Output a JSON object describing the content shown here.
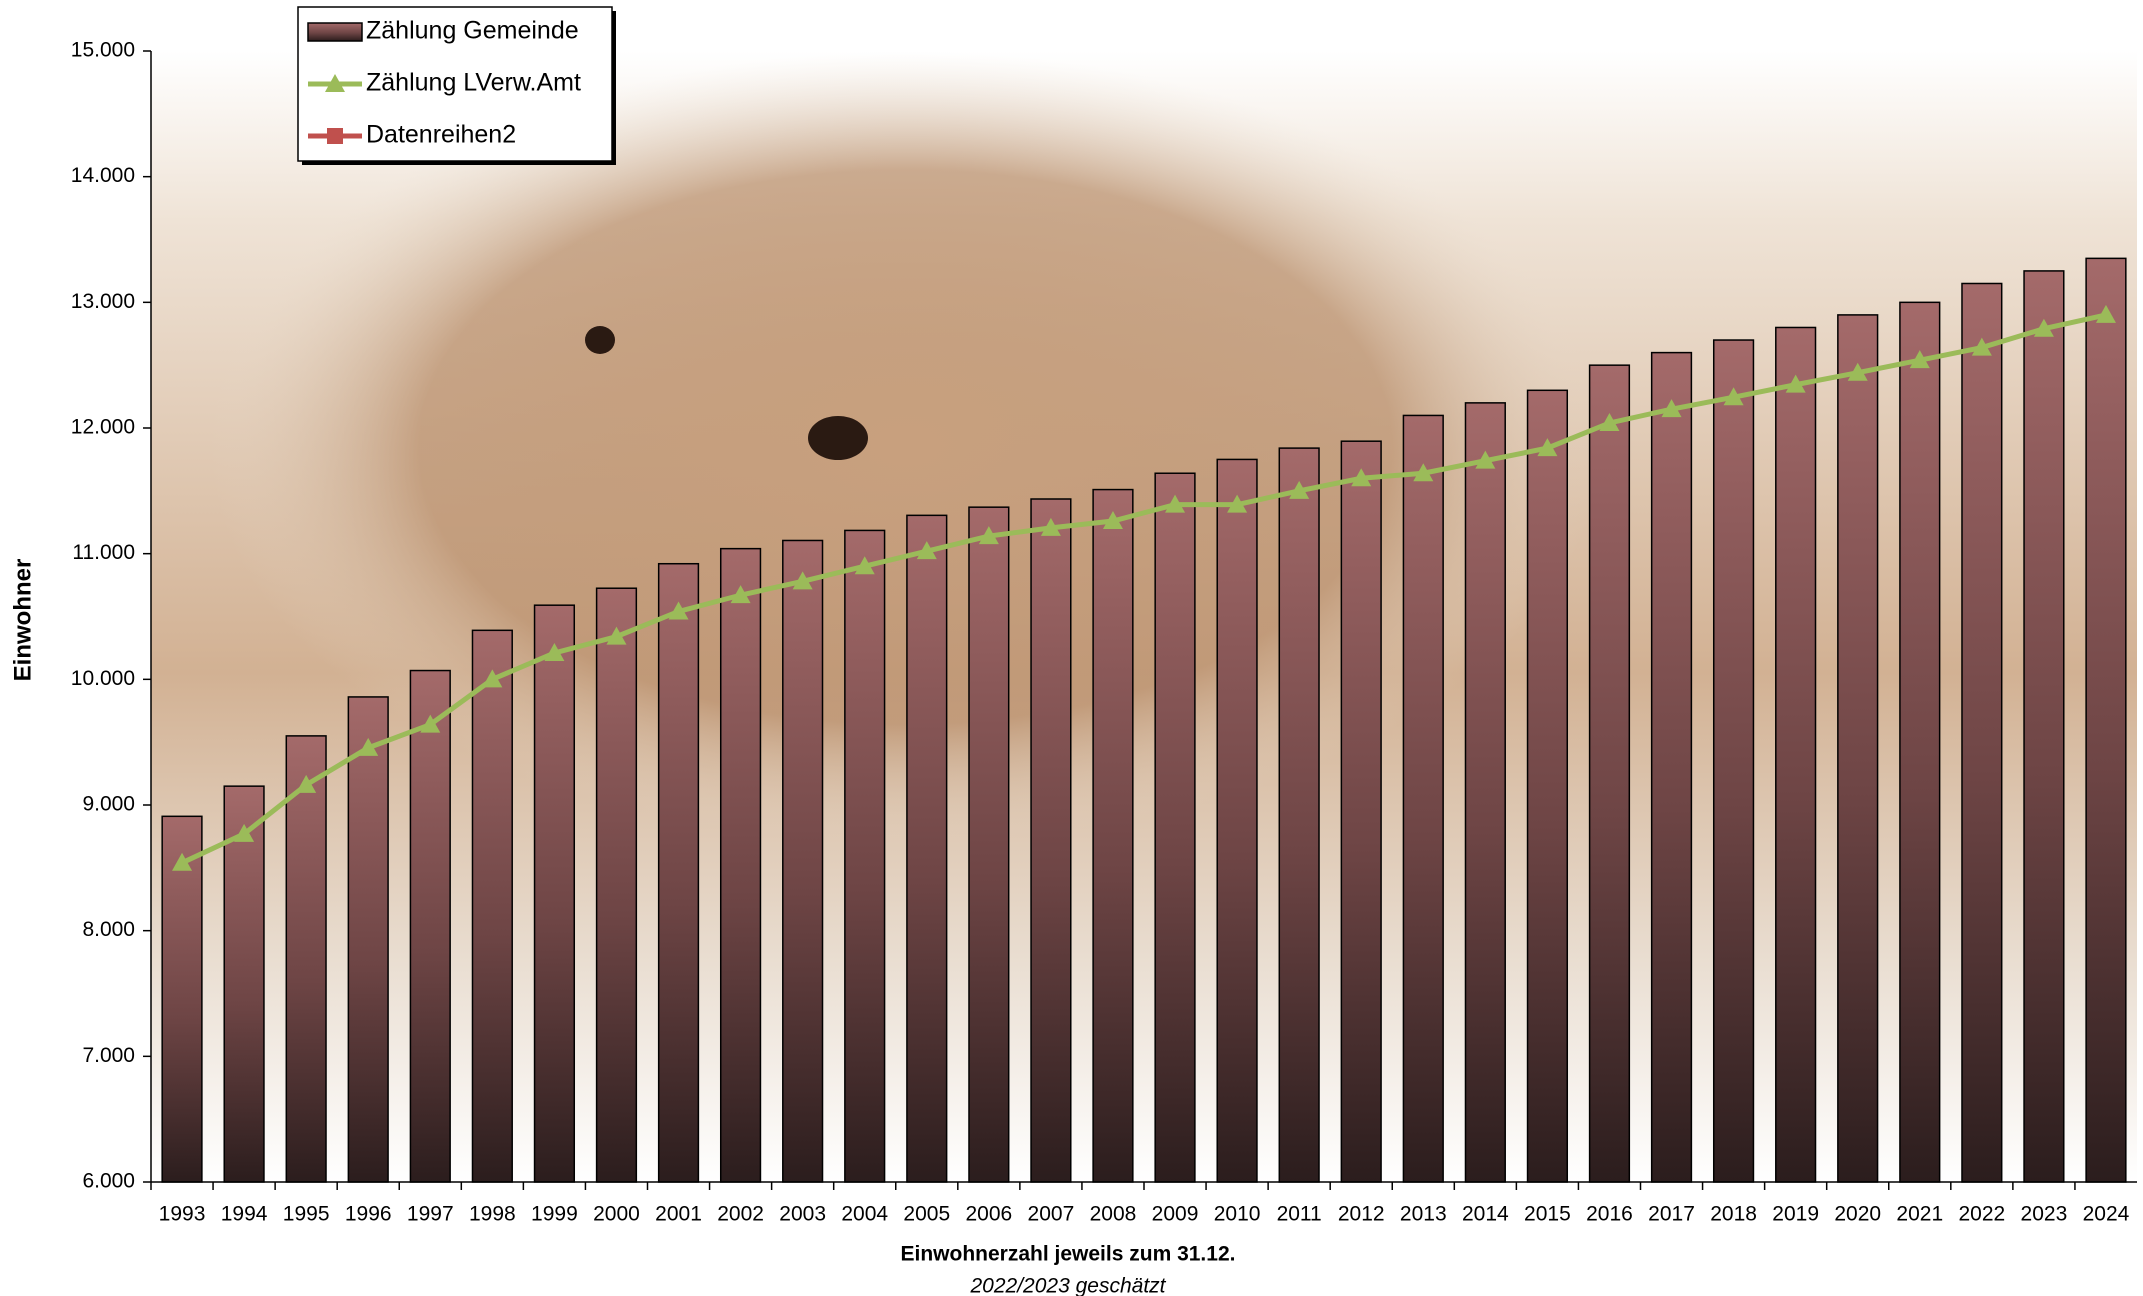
{
  "chart_data": {
    "type": "bar-line",
    "x_label": "Einwohnerzahl jeweils zum 31.12.",
    "subtitle": "2022/2023 geschätzt",
    "y_label": "Einwohner",
    "categories": [
      "1993",
      "1994",
      "1995",
      "1996",
      "1997",
      "1998",
      "1999",
      "2000",
      "2001",
      "2002",
      "2003",
      "2004",
      "2005",
      "2006",
      "2007",
      "2008",
      "2009",
      "2010",
      "2011",
      "2012",
      "2013",
      "2014",
      "2015",
      "2016",
      "2017",
      "2018",
      "2019",
      "2020",
      "2021",
      "2022",
      "2023",
      "2024"
    ],
    "series": [
      {
        "name": "Zählung Gemeinde",
        "type": "bar",
        "color": "#8a5252",
        "values": [
          8910,
          9150,
          9550,
          9860,
          10070,
          10390,
          10590,
          10725,
          10920,
          11040,
          11105,
          11185,
          11305,
          11370,
          11435,
          11510,
          11640,
          11750,
          11840,
          11895,
          12100,
          12200,
          12300,
          12500,
          12600,
          12700,
          12800,
          12900,
          13000,
          13150,
          13250,
          13350
        ]
      },
      {
        "name": "Zählung LVerw.Amt",
        "type": "line",
        "marker": "triangle",
        "color": "#9bbb59",
        "values": [
          8540,
          8770,
          9160,
          9455,
          9640,
          10000,
          10210,
          10340,
          10540,
          10670,
          10780,
          10900,
          11020,
          11140,
          11205,
          11260,
          11390,
          11390,
          11500,
          11600,
          11640,
          11740,
          11840,
          12040,
          12150,
          12245,
          12345,
          12440,
          12540,
          12640,
          12790,
          12900
        ]
      },
      {
        "name": "Datenreihen2",
        "type": "line",
        "marker": "square",
        "color": "#c0504d",
        "values": [
          null,
          null,
          null,
          null,
          null,
          null,
          null,
          null,
          null,
          null,
          null,
          null,
          null,
          null,
          null,
          null,
          null,
          null,
          null,
          null,
          null,
          null,
          null,
          null,
          null,
          null,
          null,
          null,
          null,
          null,
          null,
          null
        ]
      }
    ],
    "ylim": [
      6000,
      15000
    ],
    "yticks": [
      {
        "value": 6000,
        "label": "6.000"
      },
      {
        "value": 7000,
        "label": "7.000"
      },
      {
        "value": 8000,
        "label": "8.000"
      },
      {
        "value": 9000,
        "label": "9.000"
      },
      {
        "value": 10000,
        "label": "10.000"
      },
      {
        "value": 11000,
        "label": "11.000"
      },
      {
        "value": 12000,
        "label": "12.000"
      },
      {
        "value": 13000,
        "label": "13.000"
      },
      {
        "value": 14000,
        "label": "14.000"
      },
      {
        "value": 15000,
        "label": "15.000"
      }
    ],
    "legend": "top-left"
  }
}
